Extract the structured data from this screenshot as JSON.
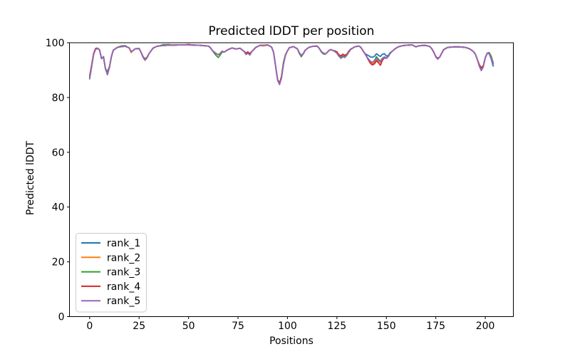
{
  "figure": {
    "title": "Predicted lDDT per position",
    "xlabel": "Positions",
    "ylabel": "Predicted lDDT"
  },
  "chart_data": {
    "type": "line",
    "title": "Predicted lDDT per position",
    "xlabel": "Positions",
    "ylabel": "Predicted lDDT",
    "xlim": [
      -10.2,
      214.2
    ],
    "ylim": [
      0,
      100
    ],
    "x_ticks": [
      0,
      25,
      50,
      75,
      100,
      125,
      150,
      175,
      200
    ],
    "x_tick_labels": [
      "0",
      "25",
      "50",
      "75",
      "100",
      "125",
      "150",
      "175",
      "200"
    ],
    "y_ticks": [
      0,
      20,
      40,
      60,
      80,
      100
    ],
    "y_tick_labels": [
      "0",
      "20",
      "40",
      "60",
      "80",
      "100"
    ],
    "grid": false,
    "legend_position": "lower left",
    "n_positions": 205,
    "base_keypoints": [
      [
        0,
        87.3
      ],
      [
        1,
        91.5
      ],
      [
        2,
        95.8
      ],
      [
        3,
        97.6
      ],
      [
        4,
        97.9
      ],
      [
        5,
        97.4
      ],
      [
        6,
        94.2
      ],
      [
        7,
        94.9
      ],
      [
        8,
        90.5
      ],
      [
        9,
        88.8
      ],
      [
        10,
        91.0
      ],
      [
        11,
        95.0
      ],
      [
        12,
        97.3
      ],
      [
        14,
        98.3
      ],
      [
        16,
        98.6
      ],
      [
        18,
        98.7
      ],
      [
        20,
        98.1
      ],
      [
        21,
        96.7
      ],
      [
        22,
        97.2
      ],
      [
        23,
        97.8
      ],
      [
        25,
        97.9
      ],
      [
        26,
        96.5
      ],
      [
        27,
        94.9
      ],
      [
        28,
        94.1
      ],
      [
        29,
        94.6
      ],
      [
        30,
        96.0
      ],
      [
        32,
        98.0
      ],
      [
        34,
        98.7
      ],
      [
        37,
        99.0
      ],
      [
        40,
        99.1
      ],
      [
        45,
        99.2
      ],
      [
        50,
        99.2
      ],
      [
        55,
        99.1
      ],
      [
        60,
        98.8
      ],
      [
        61,
        98.2
      ],
      [
        62,
        97.2
      ],
      [
        63,
        96.6
      ],
      [
        64,
        96.0
      ],
      [
        65,
        95.6
      ],
      [
        66,
        96.1
      ],
      [
        67,
        96.9
      ],
      [
        68,
        96.6
      ],
      [
        70,
        97.5
      ],
      [
        72,
        98.1
      ],
      [
        74,
        97.7
      ],
      [
        76,
        98.0
      ],
      [
        78,
        96.9
      ],
      [
        79,
        96.2
      ],
      [
        80,
        96.6
      ],
      [
        81,
        96.0
      ],
      [
        82,
        96.8
      ],
      [
        84,
        98.3
      ],
      [
        86,
        99.0
      ],
      [
        90,
        99.2
      ],
      [
        92,
        98.4
      ],
      [
        93,
        96.5
      ],
      [
        94,
        91.5
      ],
      [
        95,
        86.5
      ],
      [
        96,
        85.2
      ],
      [
        97,
        87.5
      ],
      [
        98,
        92.5
      ],
      [
        99,
        95.5
      ],
      [
        100,
        97.0
      ],
      [
        101,
        98.2
      ],
      [
        103,
        98.6
      ],
      [
        105,
        97.8
      ],
      [
        106,
        96.3
      ],
      [
        107,
        95.4
      ],
      [
        108,
        96.0
      ],
      [
        109,
        97.3
      ],
      [
        111,
        98.4
      ],
      [
        113,
        98.7
      ],
      [
        115,
        98.8
      ],
      [
        116,
        98.0
      ],
      [
        117,
        96.9
      ],
      [
        118,
        96.3
      ],
      [
        119,
        95.9
      ],
      [
        120,
        96.4
      ],
      [
        121,
        97.2
      ],
      [
        122,
        97.5
      ],
      [
        124,
        96.8
      ],
      [
        125,
        96.2
      ],
      [
        126,
        95.1
      ],
      [
        127,
        94.7
      ],
      [
        128,
        95.2
      ],
      [
        129,
        94.9
      ],
      [
        130,
        95.4
      ],
      [
        131,
        96.6
      ],
      [
        132,
        97.6
      ],
      [
        134,
        98.5
      ],
      [
        136,
        98.8
      ],
      [
        137,
        98.4
      ],
      [
        138,
        97.3
      ],
      [
        139,
        96.2
      ],
      [
        140,
        95.0
      ],
      [
        141,
        94.0
      ],
      [
        142,
        93.2
      ],
      [
        143,
        92.8
      ],
      [
        144,
        93.3
      ],
      [
        145,
        94.4
      ],
      [
        146,
        93.6
      ],
      [
        147,
        93.0
      ],
      [
        148,
        94.2
      ],
      [
        149,
        94.8
      ],
      [
        150,
        94.3
      ],
      [
        151,
        95.0
      ],
      [
        152,
        96.2
      ],
      [
        154,
        97.6
      ],
      [
        156,
        98.5
      ],
      [
        158,
        98.9
      ],
      [
        160,
        99.1
      ],
      [
        163,
        99.2
      ],
      [
        165,
        98.5
      ],
      [
        166,
        98.8
      ],
      [
        168,
        99.0
      ],
      [
        170,
        99.0
      ],
      [
        172,
        98.6
      ],
      [
        173,
        97.8
      ],
      [
        174,
        96.5
      ],
      [
        175,
        94.9
      ],
      [
        176,
        94.3
      ],
      [
        177,
        94.8
      ],
      [
        178,
        96.2
      ],
      [
        179,
        97.5
      ],
      [
        181,
        98.3
      ],
      [
        184,
        98.5
      ],
      [
        187,
        98.5
      ],
      [
        190,
        98.3
      ],
      [
        192,
        97.8
      ],
      [
        194,
        96.8
      ],
      [
        195,
        95.8
      ],
      [
        196,
        93.8
      ],
      [
        197,
        91.8
      ],
      [
        198,
        90.6
      ],
      [
        199,
        91.5
      ],
      [
        200,
        94.5
      ],
      [
        201,
        96.2
      ],
      [
        202,
        96.0
      ],
      [
        203,
        94.5
      ],
      [
        204,
        92.3
      ]
    ],
    "series": [
      {
        "name": "rank_1",
        "color": "#1f77b4",
        "offset_keypoints": [
          [
            8,
            0
          ],
          [
            9,
            0.2
          ],
          [
            10,
            0
          ],
          [
            139,
            0
          ],
          [
            141,
            1.3
          ],
          [
            143,
            1.9
          ],
          [
            145,
            1.6
          ],
          [
            147,
            2.0
          ],
          [
            149,
            1.2
          ],
          [
            151,
            0.4
          ],
          [
            153,
            0
          ],
          [
            202,
            0
          ],
          [
            203,
            -0.4
          ],
          [
            204,
            -0.8
          ]
        ]
      },
      {
        "name": "rank_2",
        "color": "#ff7f0e",
        "offset_keypoints": [
          [
            20,
            0
          ],
          [
            21,
            -0.3
          ],
          [
            22,
            0
          ],
          [
            86,
            0
          ],
          [
            88,
            -0.25
          ],
          [
            90,
            0
          ],
          [
            140,
            0
          ],
          [
            142,
            -0.4
          ],
          [
            144,
            -0.6
          ],
          [
            146,
            -0.3
          ],
          [
            148,
            0
          ],
          [
            196,
            0
          ],
          [
            197,
            0.3
          ],
          [
            199,
            0
          ]
        ]
      },
      {
        "name": "rank_3",
        "color": "#2ca02c",
        "offset_keypoints": [
          [
            0,
            -0.5
          ],
          [
            1,
            -0.3
          ],
          [
            2,
            0
          ],
          [
            8,
            0
          ],
          [
            9,
            0.7
          ],
          [
            10,
            0.3
          ],
          [
            11,
            0
          ],
          [
            14,
            0
          ],
          [
            16,
            0.25
          ],
          [
            18,
            0.2
          ],
          [
            20,
            0
          ],
          [
            35,
            0
          ],
          [
            37,
            0.3
          ],
          [
            40,
            0.25
          ],
          [
            42,
            0
          ],
          [
            62,
            0
          ],
          [
            64,
            -0.7
          ],
          [
            65,
            -1.0
          ],
          [
            66,
            -0.6
          ],
          [
            68,
            0
          ],
          [
            96,
            0
          ],
          [
            98,
            0.4
          ],
          [
            100,
            0
          ],
          [
            105,
            0
          ],
          [
            107,
            -0.5
          ],
          [
            108,
            0
          ],
          [
            116,
            0
          ],
          [
            118,
            -0.3
          ],
          [
            120,
            0
          ],
          [
            143,
            0
          ],
          [
            145,
            0.5
          ],
          [
            147,
            0.3
          ],
          [
            149,
            0
          ],
          [
            201,
            0
          ],
          [
            202,
            0.4
          ],
          [
            203,
            0.6
          ],
          [
            204,
            0.4
          ]
        ]
      },
      {
        "name": "rank_4",
        "color": "#d62728",
        "offset_keypoints": [
          [
            0,
            0.5
          ],
          [
            1,
            0.4
          ],
          [
            3,
            0.3
          ],
          [
            5,
            0
          ],
          [
            8,
            0
          ],
          [
            9,
            -0.4
          ],
          [
            10,
            0
          ],
          [
            26,
            0
          ],
          [
            28,
            -0.5
          ],
          [
            29,
            0
          ],
          [
            48,
            0
          ],
          [
            50,
            0.2
          ],
          [
            52,
            0
          ],
          [
            123,
            0
          ],
          [
            125,
            0.5
          ],
          [
            128,
            0.6
          ],
          [
            131,
            0.3
          ],
          [
            133,
            0
          ],
          [
            140,
            0
          ],
          [
            142,
            -0.8
          ],
          [
            144,
            -1.0
          ],
          [
            146,
            -0.9
          ],
          [
            147,
            -1.2
          ],
          [
            148,
            -0.6
          ],
          [
            150,
            0
          ],
          [
            197,
            0
          ],
          [
            198,
            0.4
          ],
          [
            199,
            0
          ]
        ]
      },
      {
        "name": "rank_5",
        "color": "#9467bd",
        "offset_keypoints": [
          [
            0,
            -0.3
          ],
          [
            1,
            0
          ],
          [
            8,
            0
          ],
          [
            9,
            -0.5
          ],
          [
            10,
            0
          ],
          [
            26,
            0
          ],
          [
            28,
            -0.4
          ],
          [
            30,
            0
          ],
          [
            78,
            0
          ],
          [
            79,
            -0.5
          ],
          [
            81,
            -0.5
          ],
          [
            82,
            0
          ],
          [
            94,
            0
          ],
          [
            96,
            -0.5
          ],
          [
            98,
            -0.4
          ],
          [
            99,
            0
          ],
          [
            126,
            0
          ],
          [
            127,
            -0.4
          ],
          [
            129,
            -0.3
          ],
          [
            130,
            0
          ],
          [
            174,
            0
          ],
          [
            176,
            -0.3
          ],
          [
            177,
            0
          ],
          [
            196,
            0
          ],
          [
            198,
            -0.8
          ],
          [
            199,
            -0.4
          ],
          [
            200,
            0
          ]
        ]
      }
    ],
    "legend_entries": [
      "rank_1",
      "rank_2",
      "rank_3",
      "rank_4",
      "rank_5"
    ]
  }
}
